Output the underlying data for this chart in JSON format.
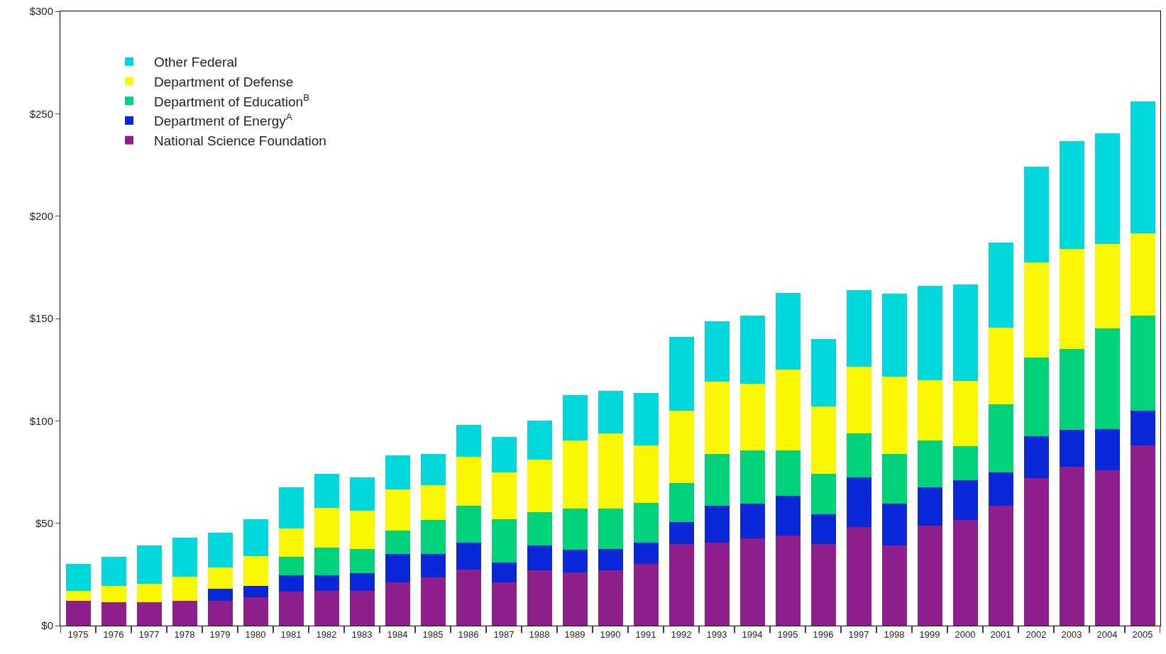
{
  "chart_data": {
    "type": "bar",
    "stacked": true,
    "categories": [
      "1975",
      "1976",
      "1977",
      "1978",
      "1979",
      "1980",
      "1981",
      "1982",
      "1983",
      "1984",
      "1985",
      "1986",
      "1987",
      "1988",
      "1989",
      "1990",
      "1991",
      "1992",
      "1993",
      "1994",
      "1995",
      "1996",
      "1997",
      "1998",
      "1999",
      "2000",
      "2001",
      "2002",
      "2003",
      "2004",
      "2005"
    ],
    "series": [
      {
        "name": "National Science Foundation",
        "color": "#8e1f8c",
        "values": [
          12,
          11.5,
          11.5,
          12,
          12,
          14,
          16.5,
          17,
          17,
          21,
          23.5,
          27.5,
          21,
          27,
          26,
          27,
          30,
          40,
          40.5,
          42.5,
          44,
          40,
          48,
          39,
          49,
          51.5,
          58.5,
          72,
          77.5,
          76,
          88
        ]
      },
      {
        "name": "Department of Energy$^{A}$",
        "color": "#0a28d8",
        "values": [
          0,
          0,
          0,
          0,
          6,
          5.5,
          8,
          7.5,
          8.5,
          14,
          11.5,
          13,
          10,
          12,
          11,
          10.5,
          10.5,
          10.5,
          18,
          17,
          19.5,
          14.5,
          24.5,
          20.5,
          18.5,
          19.5,
          16.5,
          20.5,
          18,
          20,
          17
        ]
      },
      {
        "name": "Department of Education$^{B}$",
        "color": "#00d27a",
        "values": [
          0,
          0,
          0,
          0,
          0,
          0,
          9,
          13.5,
          12,
          11.5,
          16.5,
          18,
          21,
          16.5,
          20,
          19.5,
          19.5,
          19,
          25.5,
          26,
          22,
          19.5,
          21.5,
          24.5,
          23,
          16.5,
          33,
          38.5,
          39.5,
          49,
          46.5
        ]
      },
      {
        "name": "Department of Defense",
        "color": "#fbf700",
        "values": [
          5,
          8,
          9,
          12,
          10.5,
          14.5,
          14,
          19.5,
          18.5,
          20,
          17,
          24,
          23,
          25.5,
          33.5,
          37,
          28,
          35.5,
          35,
          32.5,
          39.5,
          33,
          32.5,
          37.5,
          29.5,
          32,
          37.5,
          46.5,
          49,
          41.5,
          40
        ]
      },
      {
        "name": "Other Federal",
        "color": "#00d8dc",
        "values": [
          13,
          14,
          18.5,
          19,
          17,
          18,
          20,
          16.5,
          16.5,
          16.5,
          15.5,
          15.5,
          17,
          19,
          22,
          20.5,
          25.5,
          36,
          29.5,
          33.5,
          37.5,
          33,
          37.5,
          40.5,
          46,
          47,
          41.5,
          46.5,
          52.5,
          54,
          64.5
        ]
      }
    ],
    "ylim": [
      0,
      300
    ],
    "yticks": [
      {
        "value": 0,
        "label": "$0"
      },
      {
        "value": 50,
        "label": "$50"
      },
      {
        "value": 100,
        "label": "$100"
      },
      {
        "value": 150,
        "label": "$150"
      },
      {
        "value": 200,
        "label": "$200"
      },
      {
        "value": 250,
        "label": "$250"
      },
      {
        "value": 300,
        "label": "$300"
      }
    ],
    "grid": false,
    "legend": "top left"
  }
}
